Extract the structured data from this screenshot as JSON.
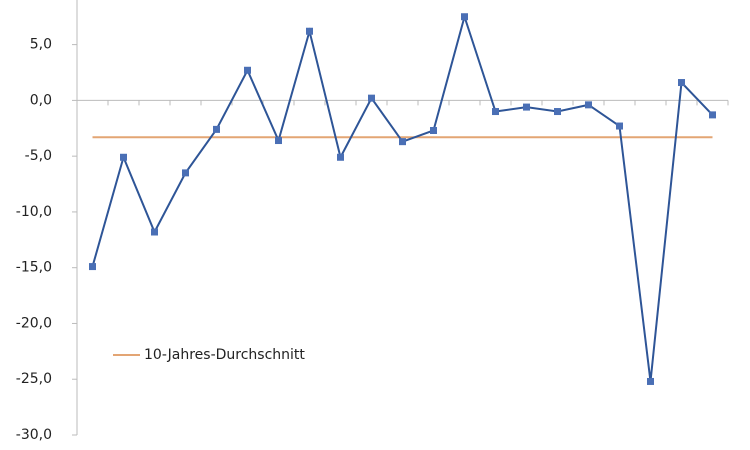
{
  "chart_data": {
    "type": "line",
    "categories": [
      null,
      null,
      null,
      null,
      null,
      null,
      null,
      null,
      null,
      null,
      null,
      null,
      null,
      null,
      null,
      null,
      null,
      null,
      null,
      null,
      null
    ],
    "series": [
      {
        "color": "#2e5597",
        "values": [
          -14.9,
          -5.1,
          -11.8,
          -6.5,
          -2.6,
          2.7,
          -3.6,
          6.2,
          -5.1,
          0.2,
          -3.7,
          -2.7,
          7.5,
          -1.0,
          -0.6,
          -1.0,
          -0.4,
          -2.3,
          -25.2,
          1.6,
          -1.3
        ]
      }
    ],
    "reference_line": {
      "name": "10-Jahres-Durchschnitt",
      "value": -3.3,
      "color": "#e3a574"
    },
    "ylim": [
      -30,
      9
    ],
    "yticks": [
      {
        "value": -30,
        "label": "-30,0"
      },
      {
        "value": -25,
        "label": "-25,0"
      },
      {
        "value": -20,
        "label": "-20,0"
      },
      {
        "value": -15,
        "label": "-15,0"
      },
      {
        "value": -10,
        "label": "-10,0"
      },
      {
        "value": -5,
        "label": "-5,0"
      },
      {
        "value": 0,
        "label": "0,0"
      },
      {
        "value": 5,
        "label": "5,0"
      }
    ],
    "grid": false
  }
}
